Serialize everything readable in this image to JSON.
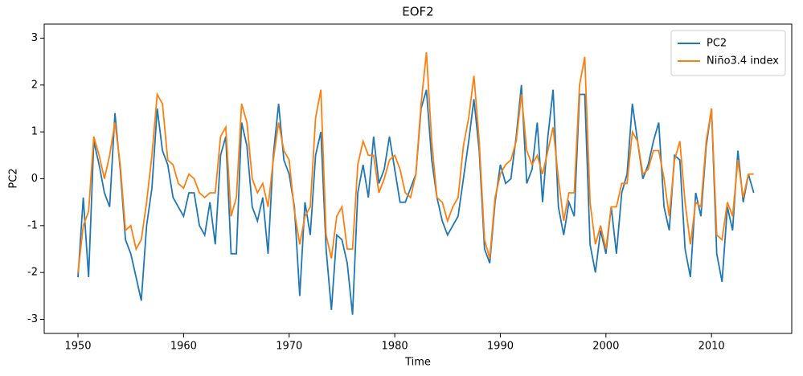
{
  "chart_data": {
    "type": "line",
    "title": "EOF2",
    "xlabel": "Time",
    "ylabel": "PC2",
    "x": [
      1950,
      1950.5,
      1951,
      1951.5,
      1952,
      1952.5,
      1953,
      1953.5,
      1954,
      1954.5,
      1955,
      1955.5,
      1956,
      1956.5,
      1957,
      1957.5,
      1958,
      1958.5,
      1959,
      1959.5,
      1960,
      1960.5,
      1961,
      1961.5,
      1962,
      1962.5,
      1963,
      1963.5,
      1964,
      1964.5,
      1965,
      1965.5,
      1966,
      1966.5,
      1967,
      1967.5,
      1968,
      1968.5,
      1969,
      1969.5,
      1970,
      1970.5,
      1971,
      1971.5,
      1972,
      1972.5,
      1973,
      1973.5,
      1974,
      1974.5,
      1975,
      1975.5,
      1976,
      1976.5,
      1977,
      1977.5,
      1978,
      1978.5,
      1979,
      1979.5,
      1980,
      1980.5,
      1981,
      1981.5,
      1982,
      1982.5,
      1983,
      1983.5,
      1984,
      1984.5,
      1985,
      1985.5,
      1986,
      1986.5,
      1987,
      1987.5,
      1988,
      1988.5,
      1989,
      1989.5,
      1990,
      1990.5,
      1991,
      1991.5,
      1992,
      1992.5,
      1993,
      1993.5,
      1994,
      1994.5,
      1995,
      1995.5,
      1996,
      1996.5,
      1997,
      1997.5,
      1998,
      1998.5,
      1999,
      1999.5,
      2000,
      2000.5,
      2001,
      2001.5,
      2002,
      2002.5,
      2003,
      2003.5,
      2004,
      2004.5,
      2005,
      2005.5,
      2006,
      2006.5,
      2007,
      2007.5,
      2008,
      2008.5,
      2009,
      2009.5,
      2010,
      2010.5,
      2011,
      2011.5,
      2012,
      2012.5,
      2013,
      2013.5,
      2014
    ],
    "series": [
      {
        "name": "PC2",
        "color": "#1f77b4",
        "values": [
          -2.1,
          -0.4,
          -2.1,
          0.8,
          0.3,
          -0.3,
          -0.6,
          1.4,
          0.2,
          -1.3,
          -1.6,
          -2.1,
          -2.6,
          -1.0,
          -0.2,
          1.5,
          0.6,
          0.3,
          -0.4,
          -0.6,
          -0.8,
          -0.3,
          -0.3,
          -1.0,
          -1.2,
          -0.5,
          -1.4,
          0.5,
          0.9,
          -1.6,
          -1.6,
          1.2,
          0.7,
          -0.6,
          -0.9,
          -0.4,
          -1.6,
          0.5,
          1.6,
          0.4,
          0.1,
          -0.6,
          -2.5,
          -0.5,
          -1.2,
          0.5,
          1.0,
          -1.5,
          -2.8,
          -1.2,
          -1.3,
          -1.8,
          -2.9,
          -0.3,
          0.3,
          -0.4,
          0.9,
          -0.1,
          0.2,
          0.9,
          0.2,
          -0.5,
          -0.5,
          -0.2,
          0.1,
          1.5,
          1.9,
          0.4,
          -0.4,
          -0.9,
          -1.2,
          -1.0,
          -0.8,
          0.0,
          0.8,
          1.7,
          0.6,
          -1.5,
          -1.8,
          -0.5,
          0.3,
          -0.1,
          0.0,
          0.9,
          2.0,
          -0.1,
          0.2,
          1.2,
          -0.5,
          0.9,
          1.9,
          -0.6,
          -1.2,
          -0.5,
          -0.8,
          1.8,
          1.8,
          -1.4,
          -2.0,
          -1.1,
          -1.6,
          -0.6,
          -1.6,
          -0.3,
          0.1,
          1.6,
          0.8,
          0.0,
          0.3,
          0.8,
          1.2,
          -0.6,
          -1.1,
          0.5,
          0.4,
          -1.5,
          -2.1,
          -0.3,
          -0.8,
          0.7,
          1.5,
          -1.6,
          -2.2,
          -0.6,
          -1.1,
          0.6,
          -0.5,
          0.1,
          -0.3
        ]
      },
      {
        "name": "Niño3.4 index",
        "color": "#ff7f0e",
        "values": [
          -2.0,
          -1.0,
          -0.7,
          0.9,
          0.5,
          0.0,
          0.5,
          1.2,
          0.3,
          -1.1,
          -1.0,
          -1.5,
          -1.3,
          -0.5,
          0.5,
          1.8,
          1.6,
          0.4,
          0.3,
          -0.1,
          -0.2,
          0.1,
          0.0,
          -0.3,
          -0.4,
          -0.3,
          -0.3,
          0.9,
          1.1,
          -0.8,
          -0.4,
          1.6,
          1.2,
          0.0,
          -0.3,
          -0.1,
          -0.6,
          0.4,
          1.2,
          0.6,
          0.4,
          -0.7,
          -1.4,
          -0.8,
          -0.6,
          1.3,
          1.9,
          -1.2,
          -1.7,
          -0.8,
          -0.6,
          -1.5,
          -1.5,
          0.3,
          0.8,
          0.5,
          0.5,
          -0.3,
          0.0,
          0.4,
          0.5,
          0.2,
          -0.3,
          -0.4,
          0.1,
          1.6,
          2.7,
          0.8,
          -0.4,
          -0.5,
          -0.9,
          -0.6,
          -0.4,
          0.7,
          1.3,
          2.2,
          0.8,
          -1.3,
          -1.7,
          -0.4,
          0.1,
          0.3,
          0.4,
          0.8,
          1.8,
          0.6,
          0.3,
          0.5,
          0.1,
          0.6,
          1.1,
          0.0,
          -0.9,
          -0.3,
          -0.3,
          2.0,
          2.6,
          -0.5,
          -1.4,
          -1.0,
          -1.5,
          -0.6,
          -0.6,
          -0.1,
          -0.1,
          1.0,
          0.8,
          0.1,
          0.2,
          0.6,
          0.6,
          0.0,
          -0.8,
          0.4,
          0.8,
          -0.5,
          -1.4,
          -0.5,
          -0.6,
          0.8,
          1.5,
          -1.2,
          -1.3,
          -0.5,
          -0.8,
          0.4,
          -0.4,
          0.1,
          0.1
        ]
      }
    ],
    "xlim": [
      1946.8,
      2017.6
    ],
    "xticks": [
      1950,
      1960,
      1970,
      1980,
      1990,
      2000,
      2010
    ],
    "ylim": [
      -3.3,
      3.3
    ],
    "yticks": [
      -3,
      -2,
      -1,
      0,
      1,
      2,
      3
    ],
    "legend": "upper right"
  }
}
